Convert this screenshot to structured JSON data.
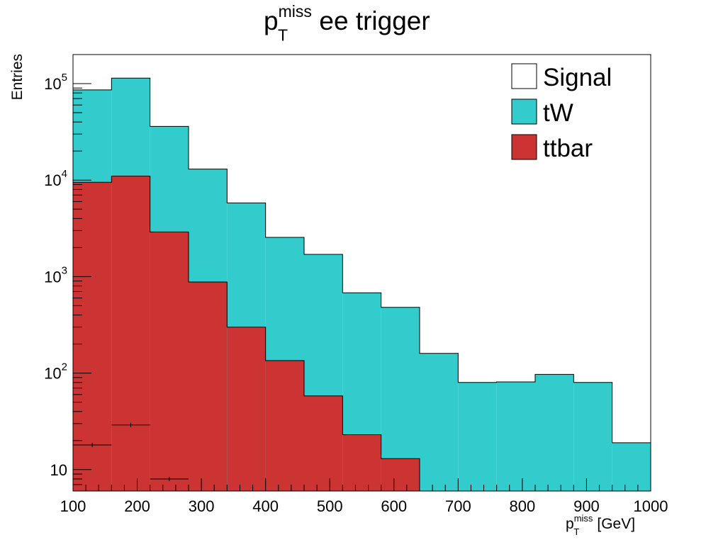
{
  "chart_data": {
    "type": "bar",
    "title": {
      "base": "p",
      "sup": "miss",
      "sub": "T",
      "rest": " ee trigger"
    },
    "xlabel": {
      "base": "p",
      "sup": "miss",
      "sub": "T",
      "rest": " [GeV]"
    },
    "ylabel": "Entries",
    "xlim": [
      100,
      1000
    ],
    "ylim": [
      6,
      200000
    ],
    "yscale": "log",
    "x_ticks": [
      100,
      200,
      300,
      400,
      500,
      600,
      700,
      800,
      900,
      1000
    ],
    "x_tick_labels": [
      "100",
      "200",
      "300",
      "400",
      "500",
      "600",
      "700",
      "800",
      "900",
      "1000"
    ],
    "y_ticks": [
      10,
      100,
      1000,
      10000,
      100000
    ],
    "y_tick_labels": [
      {
        "text": "10",
        "exp": ""
      },
      {
        "text": "10",
        "exp": "2"
      },
      {
        "text": "10",
        "exp": "3"
      },
      {
        "text": "10",
        "exp": "4"
      },
      {
        "text": "10",
        "exp": "5"
      }
    ],
    "bin_edges": [
      100,
      160,
      220,
      280,
      340,
      400,
      460,
      520,
      580,
      640,
      700,
      760,
      820,
      880,
      940,
      1000
    ],
    "stacked": true,
    "series": [
      {
        "name": "ttbar",
        "color": "#cc3333",
        "values": [
          9500,
          11000,
          2900,
          880,
          300,
          135,
          58,
          23,
          13,
          null,
          null,
          null,
          null,
          null,
          null
        ]
      },
      {
        "name": "tW",
        "color": "#33cccc",
        "values": [
          86000,
          114000,
          36000,
          13000,
          5800,
          2550,
          1700,
          680,
          480,
          160,
          80,
          81,
          97,
          80,
          19
        ]
      },
      {
        "name": "Signal",
        "color": "#ffffff",
        "points": [
          {
            "x": 130,
            "y": 18,
            "xerr": 30
          },
          {
            "x": 190,
            "y": 29,
            "xerr": 30
          },
          {
            "x": 250,
            "y": 8,
            "xerr": 30
          }
        ]
      }
    ],
    "legend": {
      "position": "top-right",
      "entries": [
        {
          "label": "Signal",
          "color": "#ffffff"
        },
        {
          "label": "tW",
          "color": "#33cccc"
        },
        {
          "label": "ttbar",
          "color": "#cc3333"
        }
      ]
    },
    "grid": false
  }
}
